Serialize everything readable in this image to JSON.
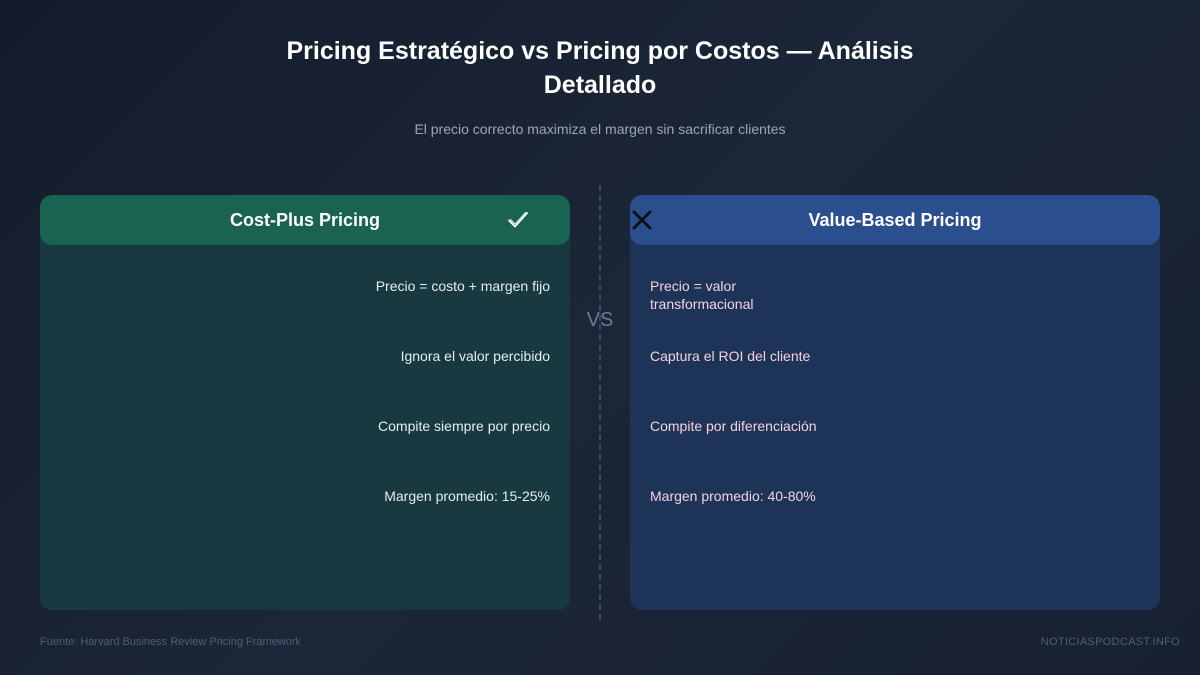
{
  "header": {
    "title": "Pricing Estratégico vs Pricing por Costos — Análisis Detallado",
    "subtitle": "El precio correcto maximiza el margen sin sacrificar clientes"
  },
  "divider_label": "VS",
  "left_panel": {
    "title": "Cost-Plus Pricing",
    "icon": "checkmark-icon",
    "items": [
      "Precio = costo + margen fijo",
      "Ignora el valor percibido",
      "Compite siempre por precio",
      "Margen promedio: 15-25%"
    ]
  },
  "right_panel": {
    "title": "Value-Based Pricing",
    "icon": "x-icon",
    "items": [
      "Precio = valor transformacional",
      "Captura el ROI del cliente",
      "Compite por diferenciación",
      "Margen promedio: 40-80%"
    ]
  },
  "footer": {
    "source": "Fuente: Harvard Business Review Pricing Framework",
    "brand": "NOTICIASPODCAST.INFO"
  },
  "colors": {
    "left_header": "#1a6350",
    "left_body": "#17393f",
    "right_header": "#2a4e8e",
    "right_body": "#1e3358",
    "right_text": "#f3d3dc"
  }
}
